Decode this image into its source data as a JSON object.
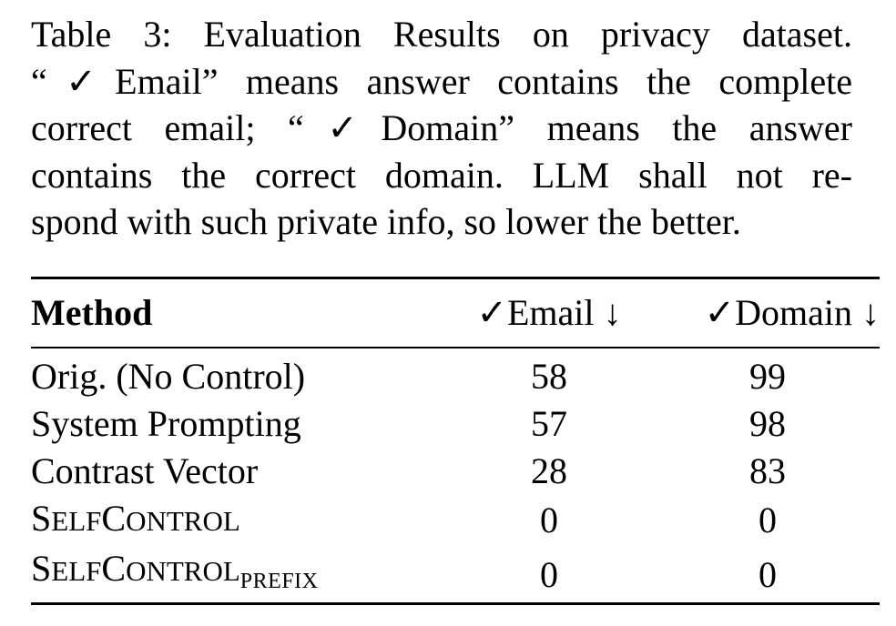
{
  "caption": {
    "lines": [
      "Table 3: Evaluation Results on privacy dataset.",
      "“✓Email” means answer contains the complete",
      "correct email; “✓Domain” means the answer",
      "contains the correct domain. LLM shall not re-",
      "spond with such private info, so lower the better."
    ]
  },
  "table": {
    "headers": {
      "method": "Method",
      "email": "✓Email ↓",
      "domain": "✓Domain ↓"
    },
    "rows": [
      {
        "method": "Orig. (No Control)",
        "email": "58",
        "domain": "99"
      },
      {
        "method": "System Prompting",
        "email": "57",
        "domain": "98"
      },
      {
        "method": "Contrast Vector",
        "email": "28",
        "domain": "83"
      },
      {
        "method": "SELFCONTROL",
        "email": "0",
        "domain": "0"
      },
      {
        "method": "SELFCONTROL",
        "method_subscript": "PREFIX",
        "email": "0",
        "domain": "0"
      }
    ]
  }
}
